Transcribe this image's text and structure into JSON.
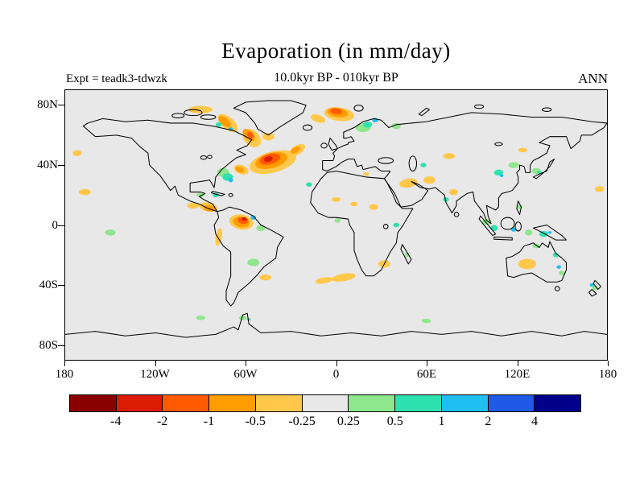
{
  "chart_data": {
    "type": "filled-contour-map",
    "title": "Evaporation (in mm/day)",
    "subtitle": "10.0kyr BP - 010kyr BP",
    "expt_label": "Expt = teadk3-tdwzk",
    "season_label": "ANN",
    "units": "mm/day",
    "projection": "equirectangular",
    "background_color": "#E8E8E8",
    "lat_ticks": [
      {
        "label": "80N",
        "value": 80
      },
      {
        "label": "40N",
        "value": 40
      },
      {
        "label": "0",
        "value": 0
      },
      {
        "label": "40S",
        "value": -40
      },
      {
        "label": "80S",
        "value": -80
      }
    ],
    "lon_ticks": [
      {
        "label": "180",
        "value": -180
      },
      {
        "label": "120W",
        "value": -120
      },
      {
        "label": "60W",
        "value": -60
      },
      {
        "label": "0",
        "value": 0
      },
      {
        "label": "60E",
        "value": 60
      },
      {
        "label": "120E",
        "value": 120
      },
      {
        "label": "180",
        "value": 180
      }
    ],
    "colorbar": {
      "levels": [
        "-4",
        "-2",
        "-1",
        "-0.5",
        "-0.25",
        "0.25",
        "0.5",
        "1",
        "2",
        "4"
      ],
      "colors": [
        "#8B0000",
        "#DC1C00",
        "#FF5A00",
        "#FF9C00",
        "#FFC84B",
        "#E8E8E8",
        "#8FE68C",
        "#2FE0B0",
        "#1FBFF2",
        "#1E5AE6",
        "#00008B"
      ]
    },
    "anomalies": {
      "columns": [
        "lon",
        "lat",
        "rx_deg",
        "ry_deg",
        "rot_deg",
        "palette_index"
      ],
      "rows": [
        [
          -42,
          42,
          16,
          7,
          -15,
          4
        ],
        [
          -43,
          43,
          11,
          5,
          -15,
          3
        ],
        [
          -44,
          44,
          7,
          3.5,
          -15,
          2
        ],
        [
          -45,
          44,
          3,
          1.8,
          -15,
          1
        ],
        [
          -26,
          50,
          6,
          3,
          -30,
          4
        ],
        [
          -27,
          50,
          3.5,
          1.8,
          -30,
          3
        ],
        [
          2,
          74,
          10,
          4.5,
          8,
          4
        ],
        [
          1,
          75,
          7,
          3,
          8,
          3
        ],
        [
          0,
          76,
          4,
          2,
          8,
          2
        ],
        [
          -12,
          71,
          5,
          2.5,
          20,
          4
        ],
        [
          18,
          65,
          5,
          3,
          0,
          6
        ],
        [
          21,
          67,
          3,
          2,
          0,
          7
        ],
        [
          26,
          70,
          2,
          1.5,
          0,
          8
        ],
        [
          40,
          66,
          3,
          2,
          0,
          6
        ],
        [
          -90,
          77,
          8,
          2.5,
          0,
          4
        ],
        [
          -72,
          68,
          8,
          4,
          40,
          4
        ],
        [
          -74,
          69,
          5,
          2.5,
          40,
          3
        ],
        [
          -56,
          58,
          7,
          5,
          45,
          4
        ],
        [
          -58,
          60,
          5,
          3,
          45,
          3
        ],
        [
          -57,
          60,
          2.5,
          1.8,
          45,
          2
        ],
        [
          -45,
          59,
          4,
          2.5,
          0,
          4
        ],
        [
          -78,
          67,
          2,
          1.5,
          0,
          7
        ],
        [
          -70,
          64,
          1.5,
          1.2,
          0,
          8
        ],
        [
          -75,
          35,
          4,
          3,
          0,
          6
        ],
        [
          -72,
          32,
          3.5,
          2.5,
          0,
          7
        ],
        [
          -70,
          30,
          1.5,
          1.5,
          0,
          8
        ],
        [
          -63,
          37,
          5,
          3,
          20,
          4
        ],
        [
          -64,
          37,
          3,
          1.8,
          20,
          3
        ],
        [
          -85,
          12,
          6,
          3,
          10,
          4
        ],
        [
          -84,
          11,
          4,
          2,
          10,
          3
        ],
        [
          -95,
          13,
          4,
          2,
          0,
          4
        ],
        [
          -80,
          20,
          2,
          1.5,
          0,
          7
        ],
        [
          -90,
          20,
          2.5,
          1.5,
          0,
          6
        ],
        [
          -63,
          2,
          8,
          5,
          10,
          4
        ],
        [
          -63,
          2,
          5.5,
          3.5,
          10,
          3
        ],
        [
          -62,
          3,
          3.5,
          2.2,
          10,
          2
        ],
        [
          -61,
          4,
          1.8,
          1.2,
          0,
          1
        ],
        [
          -55,
          5,
          1.8,
          1.5,
          0,
          8
        ],
        [
          -50,
          -2,
          3,
          2,
          0,
          6
        ],
        [
          -78,
          -8,
          2,
          6,
          10,
          4
        ],
        [
          -55,
          -25,
          4,
          2.5,
          0,
          6
        ],
        [
          -47,
          -35,
          4,
          2,
          0,
          4
        ],
        [
          5,
          -35,
          8,
          2.5,
          -10,
          4
        ],
        [
          -8,
          -37,
          6,
          2,
          -10,
          4
        ],
        [
          0,
          17,
          3,
          1.5,
          0,
          4
        ],
        [
          12,
          14,
          2.5,
          1.5,
          0,
          4
        ],
        [
          25,
          12,
          3,
          2,
          0,
          4
        ],
        [
          1,
          3,
          2,
          1.5,
          0,
          6
        ],
        [
          40,
          0,
          2,
          1.5,
          0,
          7
        ],
        [
          32,
          -26,
          4,
          2.5,
          0,
          4
        ],
        [
          47,
          -20,
          1.5,
          1.5,
          0,
          6
        ],
        [
          20,
          34,
          2,
          1.2,
          0,
          4
        ],
        [
          -18,
          27,
          2,
          1.5,
          0,
          7
        ],
        [
          48,
          28,
          6,
          3,
          -10,
          4
        ],
        [
          62,
          30,
          4,
          2.5,
          0,
          4
        ],
        [
          58,
          40,
          2,
          1.5,
          0,
          7
        ],
        [
          75,
          46,
          4,
          2,
          0,
          4
        ],
        [
          73,
          17,
          2,
          1.5,
          0,
          7
        ],
        [
          78,
          22,
          3,
          2,
          0,
          4
        ],
        [
          108,
          35,
          3,
          2,
          0,
          7
        ],
        [
          110,
          33,
          1.3,
          1,
          0,
          8
        ],
        [
          118,
          40,
          3.5,
          2,
          0,
          6
        ],
        [
          133,
          36,
          3,
          2,
          0,
          6
        ],
        [
          135,
          35,
          1.5,
          1.2,
          0,
          7
        ],
        [
          124,
          50,
          3,
          1.5,
          0,
          4
        ],
        [
          100,
          2,
          3,
          2,
          0,
          6
        ],
        [
          105,
          -2,
          2.5,
          2,
          0,
          7
        ],
        [
          118,
          -3,
          1.8,
          1.5,
          0,
          8
        ],
        [
          128,
          -5,
          2.5,
          2,
          0,
          6
        ],
        [
          138,
          -6,
          3,
          2,
          0,
          7
        ],
        [
          142,
          -5,
          1.2,
          1,
          0,
          8
        ],
        [
          122,
          12,
          2,
          1.5,
          0,
          6
        ],
        [
          127,
          -26,
          6,
          3.5,
          0,
          4
        ],
        [
          146,
          -20,
          2,
          1.5,
          0,
          7
        ],
        [
          148,
          -28,
          1.5,
          1.2,
          0,
          8
        ],
        [
          150,
          -32,
          2,
          1.5,
          0,
          6
        ],
        [
          133,
          -14,
          2.5,
          1.5,
          0,
          6
        ],
        [
          170,
          -40,
          1.5,
          1.2,
          0,
          8
        ],
        [
          172,
          -42,
          2,
          1.5,
          0,
          6
        ],
        [
          -167,
          22,
          4,
          2,
          0,
          4
        ],
        [
          -172,
          48,
          3,
          2,
          0,
          4
        ],
        [
          -150,
          -5,
          3.5,
          2,
          0,
          6
        ],
        [
          175,
          24,
          3,
          2,
          0,
          4
        ],
        [
          -90,
          -62,
          3,
          1.5,
          0,
          6
        ],
        [
          -62,
          -62,
          2.5,
          1.5,
          0,
          6
        ],
        [
          60,
          -64,
          3,
          1.5,
          0,
          6
        ],
        [
          -58,
          -63,
          1.2,
          1,
          0,
          7
        ]
      ]
    }
  }
}
